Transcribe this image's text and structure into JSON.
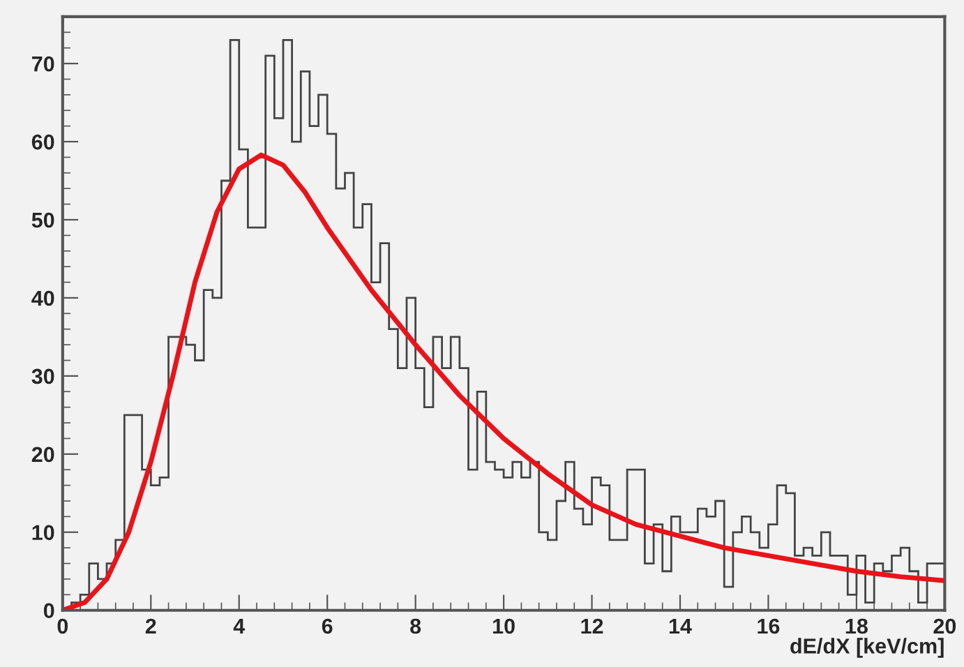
{
  "chart_data": {
    "type": "histogram",
    "xlabel": "dE/dX [keV/cm]",
    "xlim": [
      0,
      20
    ],
    "xticks": [
      0,
      2,
      4,
      6,
      8,
      10,
      12,
      14,
      16,
      18,
      20
    ],
    "ylim": [
      0,
      76
    ],
    "yticks": [
      0,
      10,
      20,
      30,
      40,
      50,
      60,
      70
    ],
    "grid": false,
    "series": [
      {
        "color": "#444444",
        "bins": [
          0,
          0.2,
          0.4,
          0.6,
          0.8,
          1,
          1.2,
          1.4,
          1.6,
          1.8,
          2,
          2.2,
          2.4,
          2.6,
          2.8,
          3,
          3.2,
          3.4,
          3.6,
          3.8,
          4,
          4.2,
          4.4,
          4.6,
          4.8,
          5,
          5.2,
          5.4,
          5.6,
          5.8,
          6,
          6.2,
          6.4,
          6.6,
          6.8,
          7,
          7.2,
          7.4,
          7.6,
          7.8,
          8,
          8.2,
          8.4,
          8.6,
          8.8,
          9,
          9.2,
          9.4,
          9.6,
          9.8,
          10,
          10.2,
          10.4,
          10.6,
          10.8,
          11,
          11.2,
          11.4,
          11.6,
          11.8,
          12,
          12.2,
          12.4,
          12.6,
          12.8,
          13,
          13.2,
          13.4,
          13.6,
          13.8,
          14,
          14.2,
          14.4,
          14.6,
          14.8,
          15,
          15.2,
          15.4,
          15.6,
          15.8,
          16,
          16.2,
          16.4,
          16.6,
          16.8,
          17,
          17.2,
          17.4,
          17.6,
          17.8,
          18,
          18.2,
          18.4,
          18.6,
          18.8,
          19,
          19.2,
          19.4,
          19.6,
          19.8,
          20
        ],
        "values": [
          0,
          1,
          2,
          6,
          4,
          6,
          9,
          25,
          25,
          18,
          16,
          17,
          35,
          35,
          34,
          32,
          41,
          40,
          55,
          73,
          59,
          49,
          49,
          71,
          63,
          73,
          60,
          69,
          62,
          66,
          61,
          54,
          56,
          49,
          52,
          42,
          47,
          36,
          31,
          40,
          31,
          26,
          35,
          31,
          35,
          31,
          18,
          28,
          19,
          18,
          17,
          19,
          17,
          19,
          10,
          9,
          14,
          19,
          13,
          11,
          17,
          16,
          9,
          9,
          18,
          18,
          6,
          11,
          5,
          12,
          10,
          10,
          13,
          12,
          14,
          3,
          10,
          12,
          10,
          8,
          11,
          16,
          15,
          7,
          8,
          7,
          10,
          7,
          7,
          2,
          7,
          1,
          6,
          5,
          7,
          8,
          5,
          1,
          6,
          6
        ]
      },
      {
        "type": "line",
        "color": "#e8141a",
        "x": [
          0,
          0.5,
          1,
          1.5,
          2,
          2.5,
          3,
          3.5,
          4,
          4.5,
          5,
          5.5,
          6,
          7,
          8,
          9,
          10,
          11,
          12,
          13,
          14,
          15,
          16,
          17,
          18,
          19,
          20
        ],
        "values": [
          0,
          1,
          4,
          10,
          19,
          30,
          42,
          51,
          56.5,
          58.3,
          57,
          53.5,
          49,
          41,
          34,
          27.5,
          22,
          17.5,
          13.5,
          11,
          9.5,
          8,
          7,
          6,
          5,
          4.3,
          3.8
        ]
      }
    ]
  }
}
